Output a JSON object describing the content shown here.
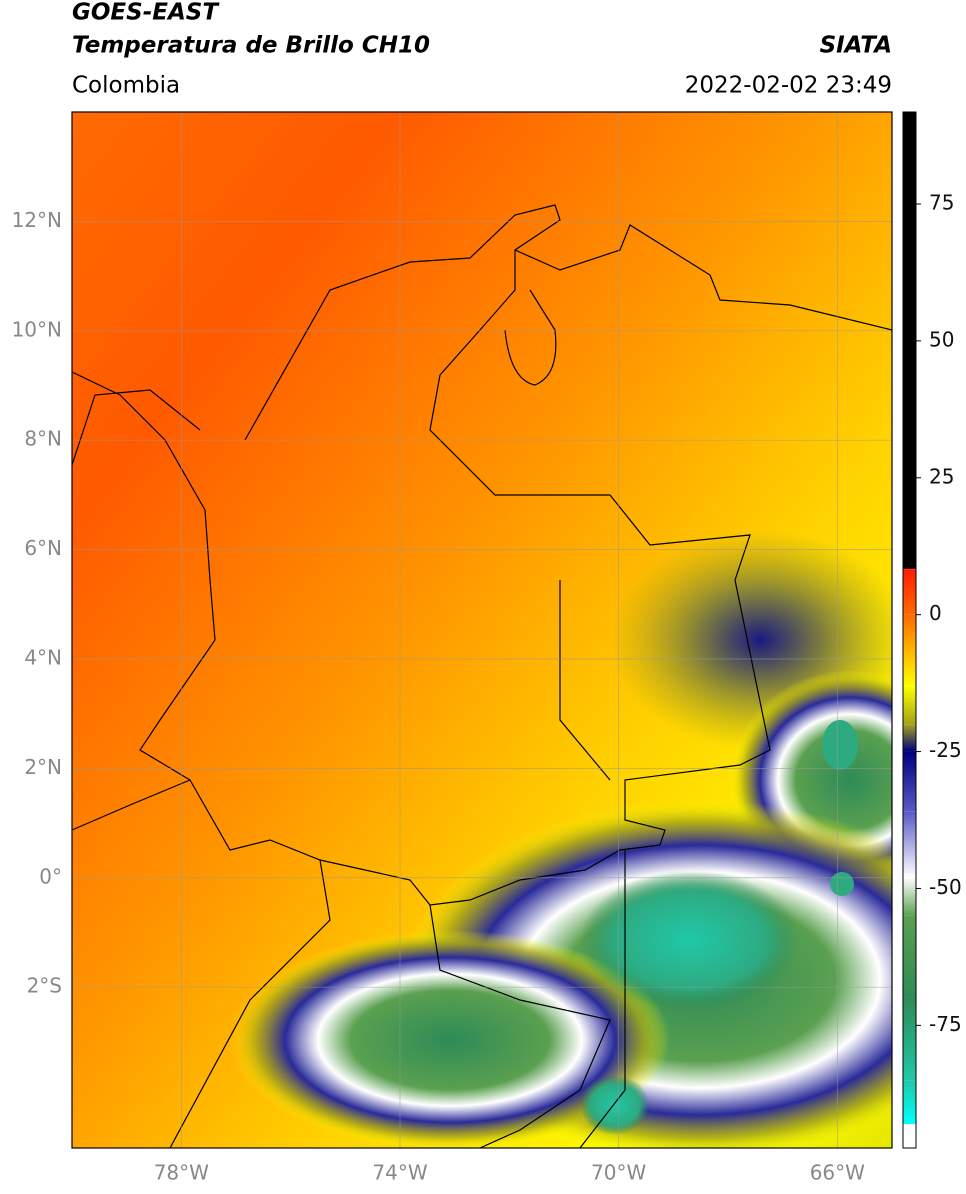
{
  "header": {
    "title": "GOES-EAST",
    "subtitle": "Temperatura de Brillo CH10",
    "region": "Colombia",
    "source": "SIATA",
    "datetime": "2022-02-02 23:49"
  },
  "map": {
    "xlim": [
      -80,
      -65
    ],
    "ylim": [
      -4.94,
      14
    ],
    "xticks": [
      {
        "value": -78,
        "label": "78°W"
      },
      {
        "value": -74,
        "label": "74°W"
      },
      {
        "value": -70,
        "label": "70°W"
      },
      {
        "value": -66,
        "label": "66°W"
      }
    ],
    "yticks": [
      {
        "value": 12,
        "label": "12°N"
      },
      {
        "value": 10,
        "label": "10°N"
      },
      {
        "value": 8,
        "label": "8°N"
      },
      {
        "value": 6,
        "label": "6°N"
      },
      {
        "value": 4,
        "label": "4°N"
      },
      {
        "value": 2,
        "label": "2°N"
      },
      {
        "value": 0,
        "label": "0°"
      },
      {
        "value": -2,
        "label": "2°S"
      }
    ],
    "grid": true
  },
  "colorbar": {
    "lim": [
      -97.4,
      91.8
    ],
    "ticks": [
      75,
      50,
      25,
      0,
      -25,
      -50,
      -75
    ],
    "colormap": [
      {
        "value": 91.8,
        "color": "#000000"
      },
      {
        "value": 8.4,
        "color": "#000000"
      },
      {
        "value": 8.3,
        "color": "#ff1a00"
      },
      {
        "value": 0,
        "color": "#ff6a00"
      },
      {
        "value": -6,
        "color": "#ffb000"
      },
      {
        "value": -13,
        "color": "#ffff00"
      },
      {
        "value": -20,
        "color": "#a3a31a"
      },
      {
        "value": -25,
        "color": "#000080"
      },
      {
        "value": -36,
        "color": "#5a5ac8"
      },
      {
        "value": -48,
        "color": "#ffffff"
      },
      {
        "value": -55,
        "color": "#5aa050"
      },
      {
        "value": -70,
        "color": "#2e8b57"
      },
      {
        "value": -85,
        "color": "#20c8a8"
      },
      {
        "value": -93,
        "color": "#00ffff"
      },
      {
        "value": -93.1,
        "color": "#ffffff"
      },
      {
        "value": -97.4,
        "color": "#ffffff"
      }
    ]
  }
}
